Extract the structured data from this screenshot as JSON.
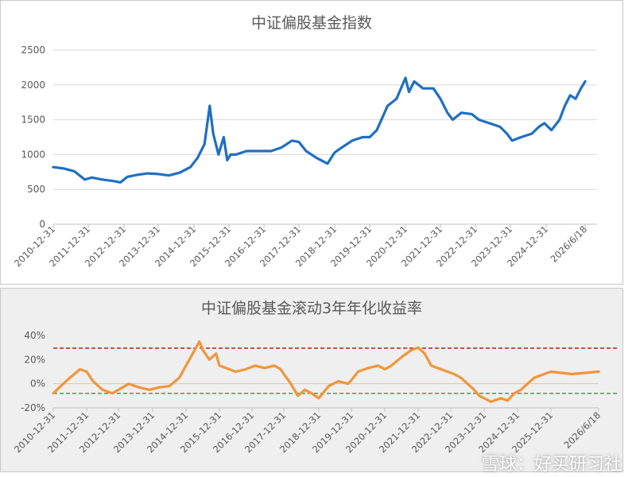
{
  "charts": [
    {
      "type": "line",
      "title": "中证偏股基金指数",
      "color": "#1f6fc3",
      "ylim": [
        0,
        2500
      ],
      "yticks": [
        "0",
        "500",
        "1000",
        "1500",
        "2000",
        "2500"
      ],
      "xticks": [
        "2010-12-31",
        "2011-12-31",
        "2012-12-31",
        "2013-12-31",
        "2014-12-31",
        "2015-12-31",
        "2016-12-31",
        "2017-12-31",
        "2018-12-31",
        "2019-12-31",
        "2020-12-31",
        "2021-12-31",
        "2022-12-31",
        "2023-12-31",
        "2024-12-31",
        "2026/6/18"
      ],
      "grid": "horizontal",
      "series": [
        {
          "x": [
            2011.0,
            2011.3,
            2011.6,
            2011.9,
            2012.1,
            2012.4,
            2012.7,
            2012.9,
            2013.1,
            2013.4,
            2013.7,
            2014.0,
            2014.3,
            2014.6,
            2014.9,
            2015.1,
            2015.3,
            2015.45,
            2015.55,
            2015.7,
            2015.85,
            2015.95,
            2016.05,
            2016.2,
            2016.5,
            2016.9,
            2017.2,
            2017.5,
            2017.8,
            2018.0,
            2018.2,
            2018.5,
            2018.8,
            2019.0,
            2019.2,
            2019.5,
            2019.8,
            2020.0,
            2020.2,
            2020.5,
            2020.75,
            2021.0,
            2021.1,
            2021.25,
            2021.5,
            2021.8,
            2022.0,
            2022.2,
            2022.35,
            2022.6,
            2022.9,
            2023.1,
            2023.4,
            2023.7,
            2023.9,
            2024.05,
            2024.3,
            2024.6,
            2024.8,
            2024.95,
            2025.2,
            2025.5,
            2025.7,
            2025.9,
            2026.1,
            2026.3,
            2026.46
          ],
          "y": [
            820,
            800,
            760,
            640,
            670,
            640,
            620,
            600,
            680,
            710,
            730,
            720,
            700,
            740,
            820,
            950,
            1150,
            1700,
            1300,
            1000,
            1250,
            920,
            1000,
            1000,
            1050,
            1050,
            1050,
            1100,
            1200,
            1180,
            1050,
            950,
            870,
            1030,
            1100,
            1200,
            1250,
            1250,
            1350,
            1700,
            1800,
            2100,
            1900,
            2050,
            1950,
            1950,
            1800,
            1600,
            1500,
            1600,
            1580,
            1500,
            1450,
            1400,
            1300,
            1200,
            1250,
            1300,
            1400,
            1450,
            1350,
            1500,
            1700,
            1850,
            1800,
            1950,
            2050
          ]
        }
      ]
    },
    {
      "type": "line",
      "title": "中证偏股基金滚动3年年化收益率",
      "color": "#f0963c",
      "ylim": [
        -20,
        40
      ],
      "yticks": [
        "-20%",
        "0%",
        "20%",
        "40%"
      ],
      "xticks": [
        "2010-12-31",
        "2011-12-31",
        "2012-12-31",
        "2013-12-31",
        "2014-12-31",
        "2015-12-31",
        "2016-12-31",
        "2017-12-31",
        "2018-12-31",
        "2019-12-31",
        "2020-12-31",
        "2021-12-31",
        "2022-12-31",
        "2023-12-31",
        "2024-12-31",
        "2025-12-31",
        "2026/6/18"
      ],
      "reference_lines": [
        {
          "value": 29.5,
          "color": "#c00000"
        },
        {
          "value": -8,
          "color": "#2e9e3e"
        }
      ],
      "series": [
        {
          "x": [
            2011.0,
            2011.3,
            2011.5,
            2011.8,
            2012.0,
            2012.2,
            2012.5,
            2012.8,
            2013.0,
            2013.3,
            2013.6,
            2013.9,
            2014.2,
            2014.5,
            2014.8,
            2015.0,
            2015.2,
            2015.4,
            2015.5,
            2015.7,
            2015.9,
            2016.0,
            2016.2,
            2016.5,
            2016.8,
            2017.1,
            2017.4,
            2017.7,
            2017.9,
            2018.0,
            2018.2,
            2018.4,
            2018.6,
            2018.8,
            2019.0,
            2019.3,
            2019.6,
            2019.9,
            2020.0,
            2020.2,
            2020.5,
            2020.8,
            2021.0,
            2021.2,
            2021.5,
            2021.8,
            2022.0,
            2022.2,
            2022.4,
            2022.7,
            2022.9,
            2023.1,
            2023.3,
            2023.5,
            2023.7,
            2023.85,
            2024.0,
            2024.2,
            2024.5,
            2024.7,
            2024.9,
            2025.1,
            2025.3,
            2025.5,
            2025.8,
            2026.0,
            2026.2,
            2026.46
          ],
          "y": [
            -8,
            0,
            5,
            12,
            10,
            2,
            -5,
            -8,
            -5,
            0,
            -3,
            -5,
            -3,
            -2,
            5,
            15,
            25,
            35,
            28,
            20,
            25,
            15,
            13,
            10,
            12,
            15,
            13,
            15,
            12,
            8,
            0,
            -10,
            -5,
            -8,
            -12,
            -2,
            2,
            0,
            3,
            10,
            13,
            15,
            12,
            15,
            22,
            28,
            30,
            25,
            15,
            12,
            10,
            8,
            5,
            0,
            -5,
            -10,
            -12,
            -15,
            -12,
            -14,
            -8,
            -5,
            0,
            5,
            8,
            10,
            8,
            10
          ]
        }
      ]
    }
  ],
  "watermark": "雪球：好买研习社"
}
